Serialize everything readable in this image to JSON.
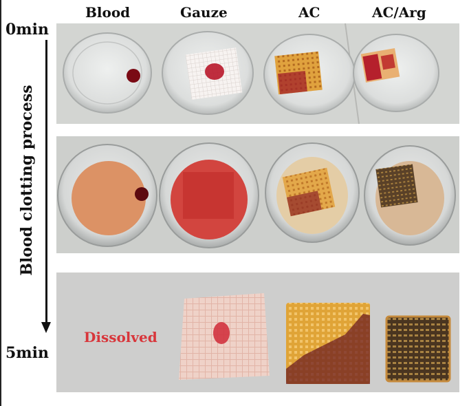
{
  "columns": {
    "blood": "Blood",
    "gauze": "Gauze",
    "ac": "AC",
    "ac_arg": "AC/Arg"
  },
  "time": {
    "start": "0min",
    "end": "5min"
  },
  "axis": {
    "label": "Blood clotting process"
  },
  "annotations": {
    "dissolved": "Dissolved"
  },
  "colors": {
    "dissolved_text": "#d8363b",
    "blood": "#7a0a14",
    "gauze": "#f3eeea",
    "ac_scaffold": "#d9a13a",
    "clot_dark": "#4a3520"
  }
}
